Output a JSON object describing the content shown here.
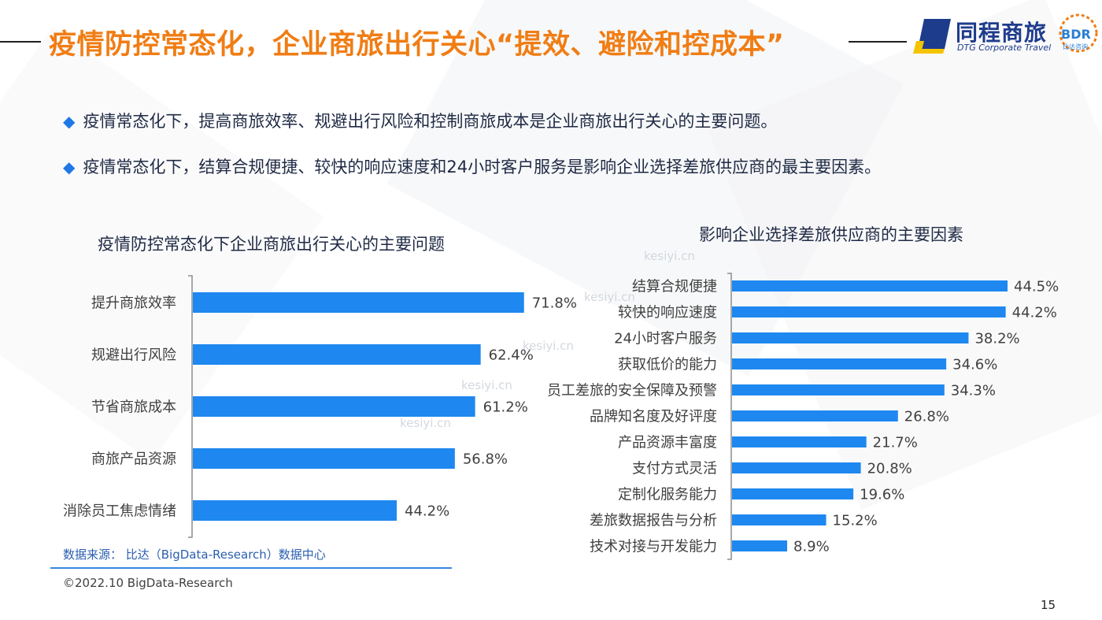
{
  "header": {
    "title": "疫情防控常态化，企业商旅出行关心“提效、避险和控成本”",
    "logo_cn": "同程商旅",
    "logo_en": "DTG Corporate Travel",
    "bdr_text": "BDR",
    "bdr_sub": "比达咨询"
  },
  "bullets": [
    "疫情常态化下，提高商旅效率、规避出行风险和控制商旅成本是企业商旅出行关心的主要问题。",
    "疫情常态化下，结算合规便捷、较快的响应速度和24小时客户服务是影响企业选择差旅供应商的最主要因素。"
  ],
  "bullet_marker": "◆",
  "watermark": "kesiyi.cn",
  "chart_data": [
    {
      "type": "bar",
      "orientation": "horizontal",
      "title": "疫情防控常态化下企业商旅出行关心的主要问题",
      "categories": [
        "提升商旅效率",
        "规避出行风险",
        "节省商旅成本",
        "商旅产品资源",
        "消除员工焦虑情绪"
      ],
      "values": [
        71.8,
        62.4,
        61.2,
        56.8,
        44.2
      ],
      "labels": [
        "71.8%",
        "62.4%",
        "61.2%",
        "56.8%",
        "44.2%"
      ],
      "unit": "%",
      "xlim": [
        0,
        100
      ],
      "color": "#1e88f0"
    },
    {
      "type": "bar",
      "orientation": "horizontal",
      "title": "影响企业选择差旅供应商的主要因素",
      "categories": [
        "结算合规便捷",
        "较快的响应速度",
        "24小时客户服务",
        "获取低价的能力",
        "员工差旅的安全保障及预警",
        "品牌知名度及好评度",
        "产品资源丰富度",
        "支付方式灵活",
        "定制化服务能力",
        "差旅数据报告与分析",
        "技术对接与开发能力"
      ],
      "values": [
        44.5,
        44.2,
        38.2,
        34.6,
        34.3,
        26.8,
        21.7,
        20.8,
        19.6,
        15.2,
        8.9
      ],
      "labels": [
        "44.5%",
        "44.2%",
        "38.2%",
        "34.6%",
        "34.3%",
        "26.8%",
        "21.7%",
        "20.8%",
        "19.6%",
        "15.2%",
        "8.9%"
      ],
      "unit": "%",
      "xlim": [
        0,
        44.5
      ],
      "color": "#1e88f0"
    }
  ],
  "footer": {
    "source": "数据来源：  比达（BigData-Research）数据中心",
    "copyright": "©2022.10 BigData-Research",
    "page": "15"
  }
}
